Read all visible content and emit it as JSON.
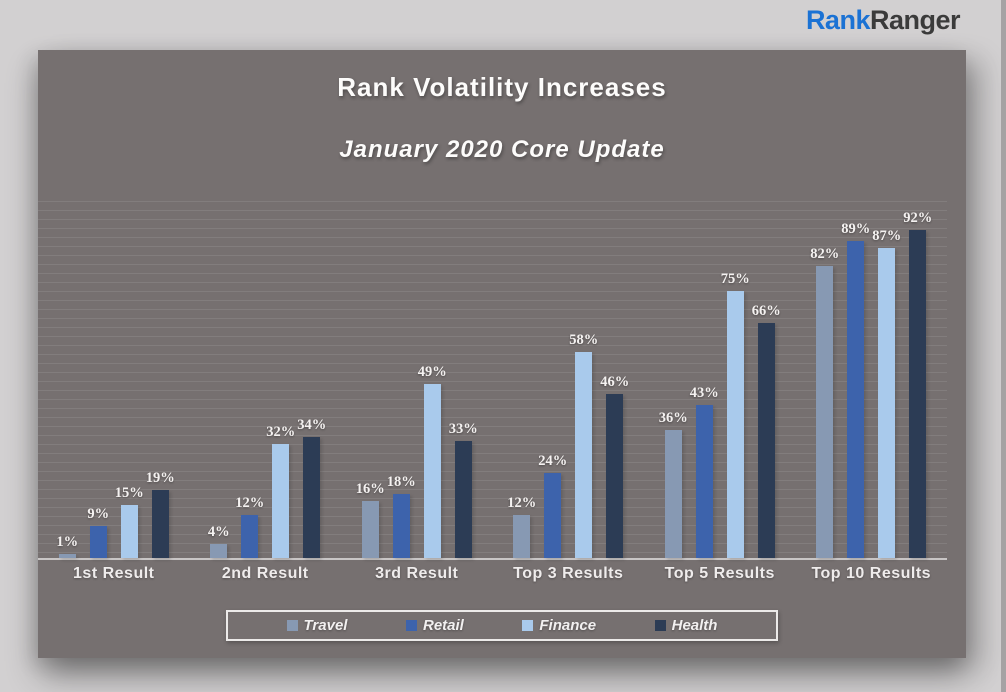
{
  "header": {
    "logo": {
      "text_primary": "Rank",
      "text_secondary": "Ranger",
      "primary_color": "#1b72d4",
      "secondary_color": "#3b3b3b"
    }
  },
  "chart_data": {
    "type": "bar",
    "title": "Rank Volatility Increases",
    "subtitle": "January 2020 Core Update",
    "categories": [
      "1st Result",
      "2nd Result",
      "3rd Result",
      "Top 3 Results",
      "Top 5 Results",
      "Top 10 Results"
    ],
    "series": [
      {
        "name": "Travel",
        "color": "#8799B3",
        "values": [
          1,
          4,
          16,
          12,
          36,
          82
        ]
      },
      {
        "name": "Retail",
        "color": "#3D63AC",
        "values": [
          9,
          12,
          18,
          24,
          43,
          89
        ]
      },
      {
        "name": "Finance",
        "color": "#A9CAEC",
        "values": [
          15,
          32,
          49,
          58,
          75,
          87
        ]
      },
      {
        "name": "Health",
        "color": "#2C3C55",
        "values": [
          19,
          34,
          33,
          46,
          66,
          92
        ]
      }
    ],
    "value_suffix": "%",
    "ylim": [
      0,
      100
    ],
    "gridlines": "horizontal-minor",
    "legend_position": "bottom",
    "data_labels": true,
    "panel_color": "#767070",
    "axis_line_color": "#c9c6c6",
    "label_color": "#f2efee"
  }
}
